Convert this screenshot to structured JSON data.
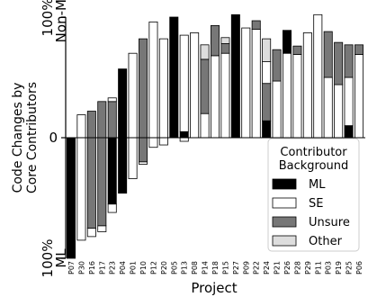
{
  "chart_data": {
    "type": "bar",
    "stacked": true,
    "diverging": true,
    "title": "",
    "xlabel": "Project",
    "ylabel": "Code Changes by\nCore Contributors",
    "ylim": [
      -100,
      100
    ],
    "y_ticks": [
      {
        "value": 100,
        "label": "100%",
        "sublabel": "Non-ML"
      },
      {
        "value": 0,
        "label": "0",
        "sublabel": ""
      },
      {
        "value": -100,
        "label": "100%",
        "sublabel": "ML"
      }
    ],
    "legend": {
      "title": "Contributor\nBackground",
      "position": "lower-right",
      "entries": [
        {
          "key": "ML",
          "label": "ML"
        },
        {
          "key": "SE",
          "label": "SE"
        },
        {
          "key": "Unsure",
          "label": "Unsure"
        },
        {
          "key": "Other",
          "label": "Other"
        }
      ]
    },
    "colors": {
      "ML": "#000000",
      "SE": "#ffffff",
      "Unsure": "#777777",
      "Other": "#dddddd"
    },
    "categories": [
      "P07",
      "P30",
      "P16",
      "P17",
      "P23",
      "P04",
      "P01",
      "P10",
      "P12",
      "P20",
      "P05",
      "P13",
      "P08",
      "P14",
      "P18",
      "P15",
      "P27",
      "P09",
      "P22",
      "P24",
      "P21",
      "P26",
      "P28",
      "P29",
      "P11",
      "P03",
      "P19",
      "P25",
      "P06"
    ],
    "bars": [
      {
        "project": "P07",
        "segments": [
          {
            "type": "ML",
            "from": 0,
            "to": -100
          }
        ]
      },
      {
        "project": "P30",
        "segments": [
          {
            "type": "SE",
            "from": -85,
            "to": 19
          }
        ]
      },
      {
        "project": "P16",
        "segments": [
          {
            "type": "SE",
            "from": -82,
            "to": -75
          },
          {
            "type": "Unsure",
            "from": -75,
            "to": 22
          }
        ]
      },
      {
        "project": "P17",
        "segments": [
          {
            "type": "SE",
            "from": -78,
            "to": -73
          },
          {
            "type": "Unsure",
            "from": -73,
            "to": 30
          }
        ]
      },
      {
        "project": "P23",
        "segments": [
          {
            "type": "SE",
            "from": -62,
            "to": -55
          },
          {
            "type": "ML",
            "from": -55,
            "to": 0
          },
          {
            "type": "Unsure",
            "from": 0,
            "to": 30
          },
          {
            "type": "SE",
            "from": 30,
            "to": 33
          }
        ]
      },
      {
        "project": "P04",
        "segments": [
          {
            "type": "ML",
            "from": -46,
            "to": 57
          }
        ]
      },
      {
        "project": "P01",
        "segments": [
          {
            "type": "SE",
            "from": -34,
            "to": 70
          }
        ]
      },
      {
        "project": "P10",
        "segments": [
          {
            "type": "SE",
            "from": -22,
            "to": -20
          },
          {
            "type": "Unsure",
            "from": -20,
            "to": 82
          }
        ]
      },
      {
        "project": "P12",
        "segments": [
          {
            "type": "SE",
            "from": -8,
            "to": 96
          }
        ]
      },
      {
        "project": "P20",
        "segments": [
          {
            "type": "SE",
            "from": -6,
            "to": 82
          }
        ]
      },
      {
        "project": "P05",
        "segments": [
          {
            "type": "ML",
            "from": 0,
            "to": 100
          }
        ]
      },
      {
        "project": "P13",
        "segments": [
          {
            "type": "SE",
            "from": -3,
            "to": 0
          },
          {
            "type": "ML",
            "from": 0,
            "to": 5
          },
          {
            "type": "SE",
            "from": 5,
            "to": 85
          }
        ]
      },
      {
        "project": "P08",
        "segments": [
          {
            "type": "SE",
            "from": 0,
            "to": 87
          }
        ]
      },
      {
        "project": "P14",
        "segments": [
          {
            "type": "SE",
            "from": 0,
            "to": 20
          },
          {
            "type": "Unsure",
            "from": 20,
            "to": 65
          },
          {
            "type": "Other",
            "from": 65,
            "to": 77
          }
        ]
      },
      {
        "project": "P18",
        "segments": [
          {
            "type": "SE",
            "from": 0,
            "to": 68
          },
          {
            "type": "Unsure",
            "from": 68,
            "to": 93
          }
        ]
      },
      {
        "project": "P15",
        "segments": [
          {
            "type": "SE",
            "from": 0,
            "to": 70
          },
          {
            "type": "Unsure",
            "from": 70,
            "to": 78
          },
          {
            "type": "Other",
            "from": 78,
            "to": 83
          }
        ]
      },
      {
        "project": "P27",
        "segments": [
          {
            "type": "ML",
            "from": 0,
            "to": 102
          }
        ]
      },
      {
        "project": "P09",
        "segments": [
          {
            "type": "SE",
            "from": 0,
            "to": 91
          }
        ]
      },
      {
        "project": "P22",
        "segments": [
          {
            "type": "SE",
            "from": 0,
            "to": 90
          },
          {
            "type": "Unsure",
            "from": 90,
            "to": 97
          }
        ]
      },
      {
        "project": "P24",
        "segments": [
          {
            "type": "ML",
            "from": 0,
            "to": 14
          },
          {
            "type": "Unsure",
            "from": 14,
            "to": 45
          },
          {
            "type": "SE",
            "from": 45,
            "to": 63
          },
          {
            "type": "Other",
            "from": 63,
            "to": 82
          }
        ]
      },
      {
        "project": "P21",
        "segments": [
          {
            "type": "SE",
            "from": 0,
            "to": 47
          },
          {
            "type": "Unsure",
            "from": 47,
            "to": 73
          }
        ]
      },
      {
        "project": "P26",
        "segments": [
          {
            "type": "SE",
            "from": 0,
            "to": 70
          },
          {
            "type": "ML",
            "from": 70,
            "to": 89
          }
        ]
      },
      {
        "project": "P28",
        "segments": [
          {
            "type": "SE",
            "from": 0,
            "to": 69
          },
          {
            "type": "Unsure",
            "from": 69,
            "to": 76
          }
        ]
      },
      {
        "project": "P29",
        "segments": [
          {
            "type": "SE",
            "from": 0,
            "to": 87
          }
        ]
      },
      {
        "project": "P11",
        "segments": [
          {
            "type": "SE",
            "from": 0,
            "to": 102
          }
        ]
      },
      {
        "project": "P03",
        "segments": [
          {
            "type": "SE",
            "from": 0,
            "to": 50
          },
          {
            "type": "Unsure",
            "from": 50,
            "to": 88
          }
        ]
      },
      {
        "project": "P19",
        "segments": [
          {
            "type": "SE",
            "from": 0,
            "to": 44
          },
          {
            "type": "Unsure",
            "from": 44,
            "to": 79
          }
        ]
      },
      {
        "project": "P25",
        "segments": [
          {
            "type": "ML",
            "from": 0,
            "to": 10
          },
          {
            "type": "SE",
            "from": 10,
            "to": 50
          },
          {
            "type": "Unsure",
            "from": 50,
            "to": 77
          }
        ]
      },
      {
        "project": "P06",
        "segments": [
          {
            "type": "SE",
            "from": 0,
            "to": 69
          },
          {
            "type": "Unsure",
            "from": 69,
            "to": 77
          }
        ]
      }
    ]
  }
}
